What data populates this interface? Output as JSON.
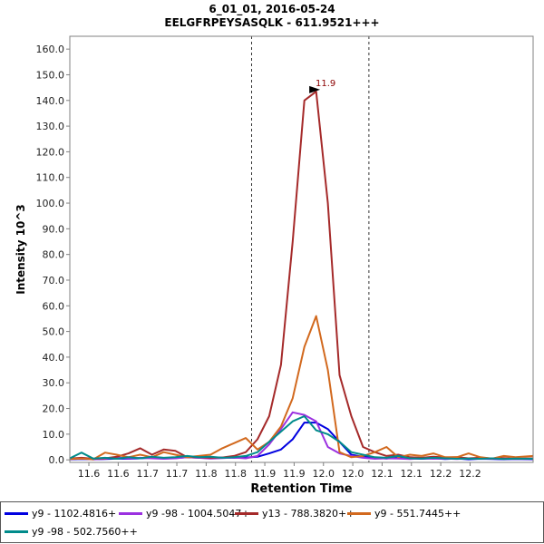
{
  "chart_data": {
    "type": "line",
    "title": "6_01_01, 2016-05-24",
    "subtitle": "EELGFRPEYSASQLK - 611.9521+++",
    "xlabel": "Retention Time",
    "ylabel": "Intensity 10^3",
    "xlim": [
      11.51,
      12.3
    ],
    "ylim": [
      -1,
      165
    ],
    "x_tick_labels": [
      "11.6",
      "11.6",
      "11.7",
      "11.7",
      "11.8",
      "11.8",
      "11.9",
      "11.9",
      "12.0",
      "12.0",
      "12.1",
      "12.1",
      "12.2",
      "12.2"
    ],
    "y_ticks": [
      0,
      10,
      20,
      30,
      40,
      50,
      60,
      70,
      80,
      90,
      100,
      110,
      120,
      130,
      140,
      150,
      160
    ],
    "y_tick_labels": [
      "0.0",
      "10.0",
      "20.0",
      "30.0",
      "40.0",
      "50.0",
      "60.0",
      "70.0",
      "80.0",
      "90.0",
      "100.0",
      "110.0",
      "120.0",
      "130.0",
      "140.0",
      "150.0",
      "160.0"
    ],
    "boundaries": [
      11.82,
      12.02
    ],
    "peak_label": {
      "text": "11.9",
      "x": 11.94,
      "y": 143.5
    },
    "series": [
      {
        "name": "y9 - 1102.4816+",
        "color": "#0000e0",
        "x": [
          11.51,
          11.53,
          11.55,
          11.57,
          11.59,
          11.61,
          11.63,
          11.65,
          11.67,
          11.69,
          11.71,
          11.73,
          11.75,
          11.77,
          11.79,
          11.81,
          11.83,
          11.85,
          11.87,
          11.89,
          11.91,
          11.93,
          11.95,
          11.97,
          11.99,
          12.01,
          12.03,
          12.05,
          12.07,
          12.09,
          12.11,
          12.13,
          12.15,
          12.17,
          12.19,
          12.21,
          12.23,
          12.25,
          12.27,
          12.3
        ],
        "y": [
          0.2,
          0.3,
          0.2,
          0.3,
          0.5,
          0.4,
          0.6,
          0.8,
          0.5,
          0.7,
          1.0,
          0.8,
          0.7,
          0.9,
          0.8,
          0.9,
          1.2,
          2.5,
          4.0,
          8.0,
          14.5,
          14.5,
          12.0,
          7.0,
          2.0,
          1.2,
          0.8,
          0.5,
          1.0,
          0.5,
          0.4,
          0.6,
          0.3,
          0.5,
          0.2,
          0.4,
          0.3,
          0.2,
          0.3,
          0.2
        ]
      },
      {
        "name": "y9 -98 - 1004.5047+",
        "color": "#9b30e0",
        "x": [
          11.51,
          11.53,
          11.55,
          11.57,
          11.59,
          11.61,
          11.63,
          11.65,
          11.67,
          11.69,
          11.71,
          11.73,
          11.75,
          11.77,
          11.79,
          11.81,
          11.83,
          11.85,
          11.87,
          11.89,
          11.91,
          11.93,
          11.95,
          11.97,
          11.99,
          12.01,
          12.03,
          12.05,
          12.07,
          12.09,
          12.11,
          12.13,
          12.15,
          12.17,
          12.19,
          12.21,
          12.23,
          12.25,
          12.27,
          12.3
        ],
        "y": [
          0.3,
          0.5,
          0.2,
          0.4,
          1.0,
          0.5,
          0.8,
          0.6,
          0.4,
          0.6,
          1.0,
          0.8,
          0.5,
          0.7,
          0.9,
          0.6,
          1.5,
          6.0,
          12.0,
          18.5,
          17.5,
          15.0,
          5.0,
          2.5,
          1.5,
          0.8,
          0.4,
          0.6,
          0.5,
          0.3,
          0.6,
          0.4,
          0.5,
          0.3,
          0.6,
          0.4,
          0.5,
          0.3,
          0.4,
          0.3
        ]
      },
      {
        "name": "y13 - 788.3820++",
        "color": "#a52a2a",
        "x": [
          11.51,
          11.53,
          11.55,
          11.57,
          11.59,
          11.61,
          11.63,
          11.65,
          11.67,
          11.69,
          11.71,
          11.73,
          11.75,
          11.77,
          11.79,
          11.81,
          11.83,
          11.85,
          11.87,
          11.89,
          11.91,
          11.93,
          11.95,
          11.97,
          11.99,
          12.01,
          12.03,
          12.05,
          12.07,
          12.09,
          12.11,
          12.13,
          12.15,
          12.17,
          12.19,
          12.21,
          12.23,
          12.25,
          12.27,
          12.3
        ],
        "y": [
          0.5,
          0.8,
          0.4,
          0.6,
          1.2,
          2.5,
          4.5,
          2.0,
          4.0,
          3.5,
          1.0,
          1.0,
          0.8,
          0.9,
          1.5,
          3.0,
          8.0,
          17.0,
          37.0,
          85.0,
          140.0,
          143.5,
          100.0,
          33.0,
          17.0,
          5.0,
          3.0,
          1.5,
          2.0,
          1.0,
          0.8,
          1.2,
          0.9,
          1.0,
          0.6,
          0.8,
          0.5,
          0.7,
          0.4,
          0.6
        ]
      },
      {
        "name": "y9 - 551.7445++",
        "color": "#d2691e",
        "x": [
          11.51,
          11.53,
          11.55,
          11.57,
          11.59,
          11.61,
          11.63,
          11.65,
          11.67,
          11.69,
          11.71,
          11.73,
          11.75,
          11.77,
          11.79,
          11.81,
          11.83,
          11.85,
          11.87,
          11.89,
          11.91,
          11.93,
          11.95,
          11.97,
          11.99,
          12.01,
          12.03,
          12.05,
          12.07,
          12.09,
          12.11,
          12.13,
          12.15,
          12.17,
          12.19,
          12.21,
          12.23,
          12.25,
          12.27,
          12.3
        ],
        "y": [
          0.3,
          0.5,
          0.2,
          2.8,
          2.0,
          1.0,
          2.0,
          1.0,
          3.0,
          2.0,
          1.0,
          1.5,
          2.0,
          4.5,
          6.5,
          8.5,
          4.0,
          7.0,
          13.0,
          24.0,
          44.0,
          56.0,
          35.0,
          3.0,
          1.0,
          1.5,
          3.0,
          5.0,
          1.0,
          2.0,
          1.5,
          2.5,
          1.0,
          1.0,
          2.5,
          1.0,
          0.5,
          1.5,
          1.0,
          1.5
        ]
      },
      {
        "name": "y9 -98 - 502.7560++",
        "color": "#008b8b",
        "x": [
          11.51,
          11.53,
          11.55,
          11.57,
          11.59,
          11.61,
          11.63,
          11.65,
          11.67,
          11.69,
          11.71,
          11.73,
          11.75,
          11.77,
          11.79,
          11.81,
          11.83,
          11.85,
          11.87,
          11.89,
          11.91,
          11.93,
          11.95,
          11.97,
          11.99,
          12.01,
          12.03,
          12.05,
          12.07,
          12.09,
          12.11,
          12.13,
          12.15,
          12.17,
          12.19,
          12.21,
          12.23,
          12.25,
          12.27,
          12.3
        ],
        "y": [
          0.6,
          2.8,
          0.5,
          0.8,
          0.4,
          1.0,
          0.6,
          1.2,
          0.8,
          1.0,
          1.5,
          1.0,
          1.2,
          0.8,
          1.0,
          1.5,
          3.0,
          7.0,
          11.0,
          15.0,
          17.0,
          11.5,
          10.0,
          7.0,
          3.0,
          2.0,
          1.0,
          0.8,
          1.5,
          0.6,
          0.5,
          0.8,
          0.6,
          0.4,
          0.5,
          0.4,
          0.6,
          0.3,
          0.5,
          0.4
        ]
      }
    ]
  }
}
